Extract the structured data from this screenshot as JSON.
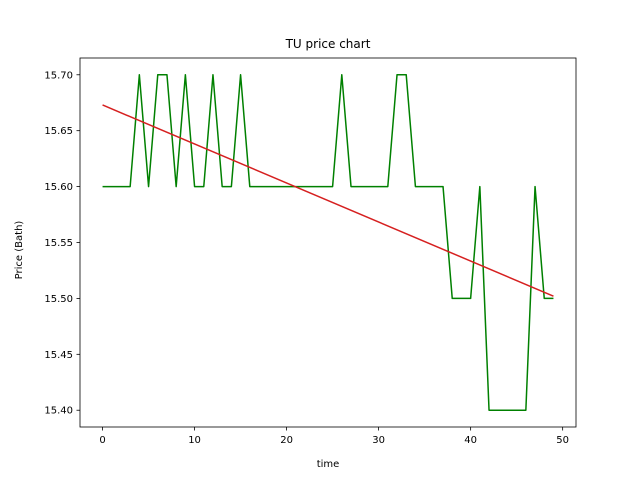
{
  "chart_data": {
    "type": "line",
    "title": "TU price chart",
    "xlabel": "time",
    "ylabel": "Price (Bath)",
    "xlim": [
      -2.45,
      51.45
    ],
    "ylim": [
      15.385,
      15.715
    ],
    "grid": false,
    "x_ticks": [
      0,
      10,
      20,
      30,
      40,
      50
    ],
    "y_ticks": [
      15.4,
      15.45,
      15.5,
      15.55,
      15.6,
      15.65,
      15.7
    ],
    "x_tick_labels": [
      "0",
      "10",
      "20",
      "30",
      "40",
      "50"
    ],
    "y_tick_labels": [
      "15.40",
      "15.45",
      "15.50",
      "15.55",
      "15.60",
      "15.65",
      "15.70"
    ],
    "x": [
      0,
      1,
      2,
      3,
      4,
      5,
      6,
      7,
      8,
      9,
      10,
      11,
      12,
      13,
      14,
      15,
      16,
      17,
      18,
      19,
      20,
      21,
      22,
      23,
      24,
      25,
      26,
      27,
      28,
      29,
      30,
      31,
      32,
      33,
      34,
      35,
      36,
      37,
      38,
      39,
      40,
      41,
      42,
      43,
      44,
      45,
      46,
      47,
      48,
      49
    ],
    "series": [
      {
        "color": "#008000",
        "values": [
          15.6,
          15.6,
          15.6,
          15.6,
          15.7,
          15.6,
          15.7,
          15.7,
          15.6,
          15.7,
          15.6,
          15.6,
          15.7,
          15.6,
          15.6,
          15.7,
          15.6,
          15.6,
          15.6,
          15.6,
          15.6,
          15.6,
          15.6,
          15.6,
          15.6,
          15.6,
          15.7,
          15.6,
          15.6,
          15.6,
          15.6,
          15.6,
          15.7,
          15.7,
          15.6,
          15.6,
          15.6,
          15.6,
          15.5,
          15.5,
          15.5,
          15.6,
          15.4,
          15.4,
          15.4,
          15.4,
          15.4,
          15.6,
          15.5,
          15.5
        ]
      },
      {
        "color": "#d62020",
        "kind": "trend",
        "x": [
          0,
          49
        ],
        "values": [
          15.673,
          15.502
        ]
      }
    ]
  }
}
